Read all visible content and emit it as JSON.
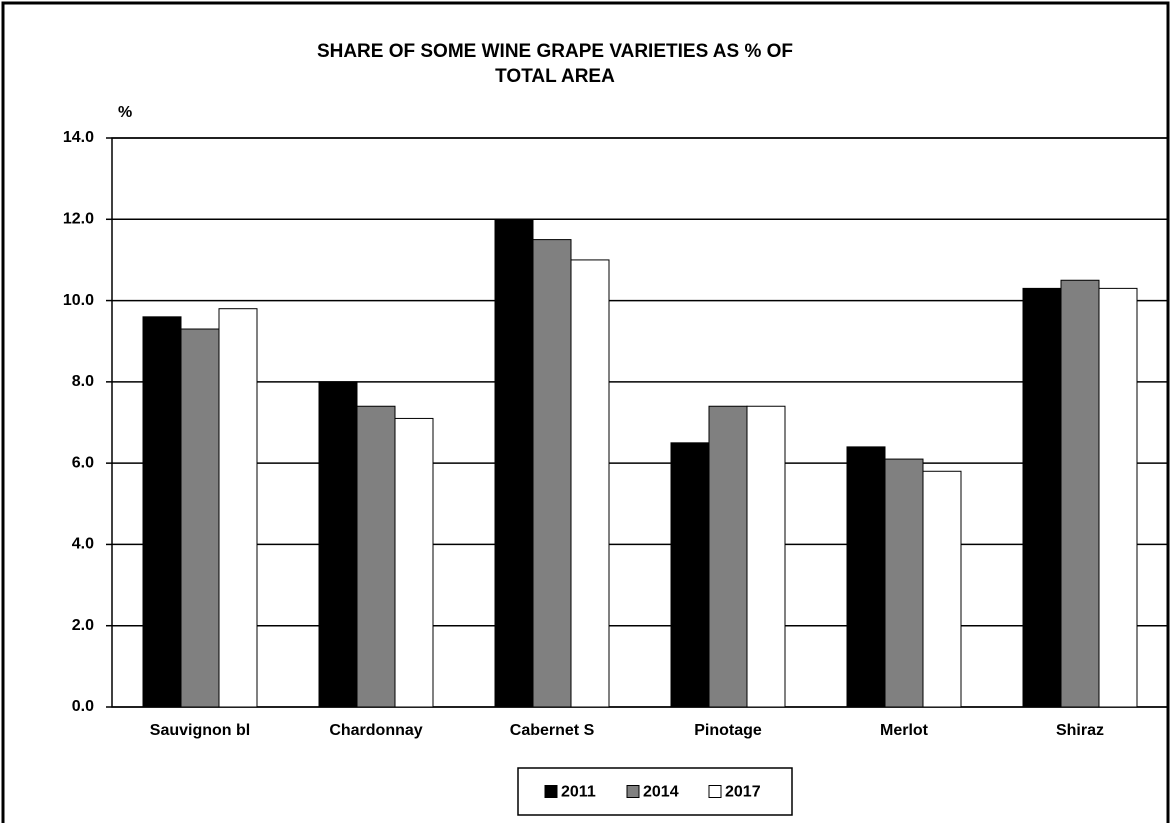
{
  "chart_data": {
    "type": "bar",
    "title": [
      "SHARE OF SOME  WINE GRAPE VARIETIES AS % OF",
      "TOTAL AREA"
    ],
    "y_label": "%",
    "categories": [
      "Sauvignon bl",
      "Chardonnay",
      "Cabernet S",
      "Pinotage",
      "Merlot",
      "Shiraz"
    ],
    "series": [
      {
        "name": "2011",
        "color": "#000000",
        "values": [
          9.6,
          8.0,
          12.0,
          6.5,
          6.4,
          10.3
        ]
      },
      {
        "name": "2014",
        "color": "#808080",
        "values": [
          9.3,
          7.4,
          11.5,
          7.4,
          6.1,
          10.5
        ]
      },
      {
        "name": "2017",
        "color": "#ffffff",
        "values": [
          9.8,
          7.1,
          11.0,
          7.4,
          5.8,
          10.3
        ]
      }
    ],
    "ylim": [
      0,
      14
    ],
    "yticks": [
      {
        "value": 0,
        "label": "0.0"
      },
      {
        "value": 2,
        "label": "2.0"
      },
      {
        "value": 4,
        "label": "4.0"
      },
      {
        "value": 6,
        "label": "6.0"
      },
      {
        "value": 8,
        "label": "8.0"
      },
      {
        "value": 10,
        "label": "10.0"
      },
      {
        "value": 12,
        "label": "12.0"
      },
      {
        "value": 14,
        "label": "14.0"
      }
    ],
    "grid": true,
    "legend": "bottom"
  }
}
